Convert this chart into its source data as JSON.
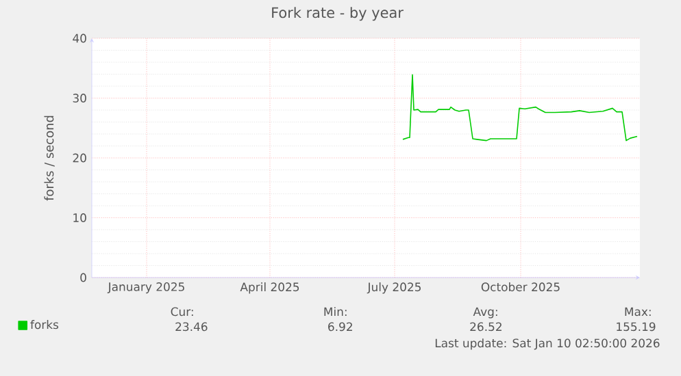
{
  "chart_data": {
    "type": "line",
    "title": "Fork rate - by year",
    "ylabel": "forks / second",
    "x": [
      "2025-07-21",
      "2025-07-25",
      "2025-07-26",
      "2025-07-28",
      "2025-07-29",
      "2025-08-01",
      "2025-08-03",
      "2025-08-14",
      "2025-08-16",
      "2025-08-24",
      "2025-08-25",
      "2025-08-28",
      "2025-08-31",
      "2025-09-05",
      "2025-09-07",
      "2025-09-10",
      "2025-09-13",
      "2025-09-20",
      "2025-09-23",
      "2025-10-12",
      "2025-10-14",
      "2025-10-18",
      "2025-10-26",
      "2025-10-28",
      "2025-11-02",
      "2025-11-09",
      "2025-11-21",
      "2025-11-27",
      "2025-12-04",
      "2025-12-14",
      "2025-12-21",
      "2025-12-24",
      "2025-12-28",
      "2025-12-31",
      "2026-01-03",
      "2026-01-08"
    ],
    "series": [
      {
        "name": "forks",
        "color": "#00cc00",
        "values": [
          23.1,
          23.4,
          23.4,
          33.9,
          28.0,
          28.1,
          27.7,
          27.7,
          28.1,
          28.1,
          28.5,
          28.0,
          27.8,
          28.0,
          28.0,
          23.2,
          23.1,
          22.9,
          23.2,
          23.2,
          28.3,
          28.2,
          28.5,
          28.2,
          27.6,
          27.6,
          27.7,
          27.9,
          27.6,
          27.8,
          28.3,
          27.7,
          27.7,
          22.9,
          23.3,
          23.6
        ]
      }
    ],
    "xlim": [
      "2024-12-06",
      "2026-01-10"
    ],
    "xticks": [
      {
        "value": "2025-01-15",
        "label": "January 2025"
      },
      {
        "value": "2025-04-15",
        "label": "April 2025"
      },
      {
        "value": "2025-07-15",
        "label": "July 2025"
      },
      {
        "value": "2025-10-15",
        "label": "October 2025"
      }
    ],
    "ylim": [
      0,
      40
    ],
    "yticks": [
      0,
      10,
      20,
      30,
      40
    ],
    "grid": true,
    "legend": "bottom left",
    "marker": "none",
    "line_style": "solid",
    "annotations": [
      "Cur:",
      "Min:",
      "Avg:",
      "Max:",
      "23.46",
      "6.92",
      "26.52",
      "155.19",
      "Last update: Sat Jan 10 02:50:00 2026"
    ]
  }
}
